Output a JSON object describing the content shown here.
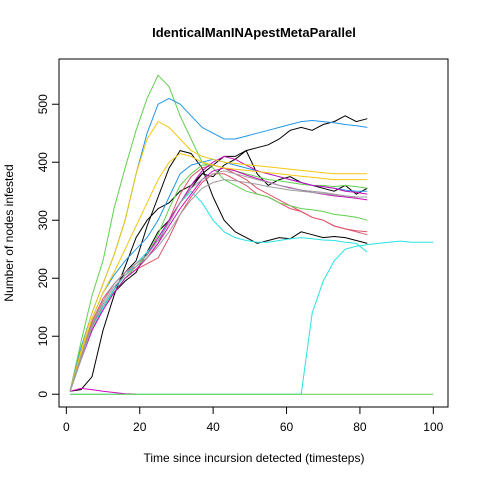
{
  "chart_data": {
    "type": "line",
    "title": "IdenticalManINApestMetaParallel",
    "xlabel": "Time since incursion detected (timesteps)",
    "ylabel": "Number of nodes infested",
    "xlim": [
      -2,
      104
    ],
    "ylim": [
      -22,
      578
    ],
    "x_ticks": [
      0,
      20,
      40,
      60,
      80,
      100
    ],
    "y_ticks": [
      0,
      100,
      200,
      300,
      400,
      500
    ],
    "grid": false,
    "legend": "none",
    "x_step": 3,
    "series": [
      {
        "color": "#000000",
        "values": [
          5,
          60,
          110,
          150,
          175,
          195,
          210,
          245,
          280,
          300,
          330,
          355,
          380,
          375,
          395,
          405,
          420,
          425,
          430,
          440,
          455,
          460,
          455,
          465,
          470,
          480,
          470,
          475
        ]
      },
      {
        "color": "#000000",
        "values": [
          5,
          8,
          30,
          110,
          170,
          220,
          270,
          300,
          320,
          330,
          350,
          360,
          380,
          395,
          410,
          410,
          420,
          380,
          360,
          370,
          375,
          365,
          360,
          355,
          350,
          360,
          345,
          355
        ]
      },
      {
        "color": "#000000",
        "values": [
          5,
          65,
          120,
          150,
          180,
          210,
          230,
          290,
          340,
          390,
          420,
          415,
          390,
          340,
          300,
          280,
          270,
          260,
          265,
          270,
          268,
          280,
          275,
          270,
          272,
          270,
          265,
          260
        ]
      },
      {
        "color": "#DF536B",
        "values": [
          5,
          65,
          125,
          165,
          190,
          210,
          220,
          235,
          260,
          300,
          345,
          375,
          390,
          395,
          390,
          380,
          370,
          355,
          345,
          335,
          325,
          315,
          305,
          300,
          290,
          285,
          280,
          275
        ]
      },
      {
        "color": "#DF536B",
        "values": [
          5,
          70,
          120,
          150,
          175,
          200,
          215,
          225,
          235,
          270,
          310,
          340,
          365,
          380,
          380,
          370,
          360,
          345,
          340,
          330,
          320,
          315,
          305,
          300,
          290,
          285,
          282,
          280
        ]
      },
      {
        "color": "#61D04F",
        "values": [
          5,
          90,
          170,
          230,
          320,
          390,
          455,
          510,
          550,
          530,
          480,
          440,
          400,
          390,
          370,
          360,
          350,
          345,
          340,
          330,
          325,
          320,
          318,
          315,
          310,
          308,
          305,
          300
        ]
      },
      {
        "color": "#61D04F",
        "values": [
          5,
          65,
          120,
          150,
          175,
          200,
          220,
          240,
          275,
          320,
          360,
          380,
          395,
          395,
          390,
          385,
          380,
          375,
          370,
          368,
          365,
          362,
          360,
          360,
          358,
          360,
          358,
          355
        ]
      },
      {
        "color": "#2297E6",
        "values": [
          5,
          80,
          140,
          190,
          240,
          300,
          380,
          450,
          500,
          510,
          500,
          480,
          460,
          450,
          440,
          440,
          445,
          450,
          455,
          460,
          465,
          470,
          472,
          470,
          468,
          465,
          463,
          460
        ]
      },
      {
        "color": "#2297E6",
        "values": [
          5,
          70,
          130,
          175,
          205,
          230,
          250,
          270,
          300,
          340,
          380,
          395,
          400,
          405,
          400,
          395,
          390,
          385,
          380,
          375,
          370,
          365,
          360,
          358,
          355,
          352,
          350,
          350
        ]
      },
      {
        "color": "#28E2E5",
        "values": [
          5,
          60,
          110,
          150,
          180,
          205,
          225,
          245,
          265,
          300,
          330,
          350,
          330,
          300,
          280,
          270,
          265,
          262,
          262,
          265,
          268,
          270,
          268,
          266,
          265,
          262,
          260,
          245
        ]
      },
      {
        "color": "#28E2E5",
        "values": [
          0,
          0,
          0,
          0,
          0,
          0,
          0,
          0,
          0,
          0,
          0,
          0,
          0,
          0,
          0,
          0,
          0,
          0,
          0,
          0,
          0,
          0,
          140,
          195,
          230,
          250,
          255,
          258,
          260,
          262,
          264,
          262,
          262,
          262
        ]
      },
      {
        "color": "#CD0BBC",
        "values": [
          5,
          65,
          120,
          160,
          190,
          210,
          225,
          240,
          270,
          300,
          330,
          360,
          385,
          400,
          410,
          405,
          395,
          385,
          380,
          375,
          370,
          365,
          360,
          358,
          355,
          350,
          348,
          345
        ]
      },
      {
        "color": "#CD0BBC",
        "values": [
          5,
          60,
          110,
          145,
          175,
          200,
          215,
          235,
          260,
          290,
          320,
          345,
          370,
          385,
          390,
          385,
          378,
          372,
          366,
          360,
          356,
          352,
          348,
          345,
          342,
          340,
          338,
          335
        ]
      },
      {
        "color": "#CD0BBC",
        "values": [
          5,
          10,
          8,
          5,
          3,
          1,
          0
        ]
      },
      {
        "color": "#F5C710",
        "values": [
          5,
          75,
          140,
          190,
          240,
          300,
          380,
          440,
          470,
          460,
          440,
          420,
          410,
          405,
          400,
          398,
          396,
          394,
          392,
          390,
          388,
          386,
          384,
          382,
          380,
          380,
          380,
          380
        ]
      },
      {
        "color": "#F5C710",
        "values": [
          5,
          70,
          130,
          175,
          210,
          250,
          290,
          330,
          370,
          400,
          415,
          410,
          400,
          395,
          390,
          388,
          386,
          384,
          382,
          380,
          378,
          376,
          374,
          372,
          370,
          370,
          370,
          370
        ]
      },
      {
        "color": "#9E9E9E",
        "values": [
          5,
          65,
          120,
          160,
          190,
          210,
          225,
          240,
          265,
          295,
          330,
          355,
          370,
          380,
          385,
          380,
          375,
          370,
          365,
          360,
          355,
          352,
          350,
          348,
          345,
          342,
          340,
          340
        ]
      },
      {
        "color": "#9E9E9E",
        "values": [
          5,
          60,
          115,
          155,
          185,
          205,
          220,
          235,
          255,
          280,
          310,
          335,
          355,
          365,
          370,
          368,
          365,
          362,
          358,
          355,
          352,
          350,
          348,
          346,
          344,
          342,
          340,
          340
        ]
      },
      {
        "color": "#61D04F",
        "values": [
          0,
          0,
          0,
          0,
          0,
          0,
          0,
          0,
          0,
          0,
          0,
          0,
          0,
          0,
          0,
          0,
          0,
          0,
          0,
          0,
          0,
          0,
          0,
          0,
          0,
          0,
          0,
          0,
          0,
          0,
          0,
          0,
          0,
          0
        ]
      }
    ]
  }
}
